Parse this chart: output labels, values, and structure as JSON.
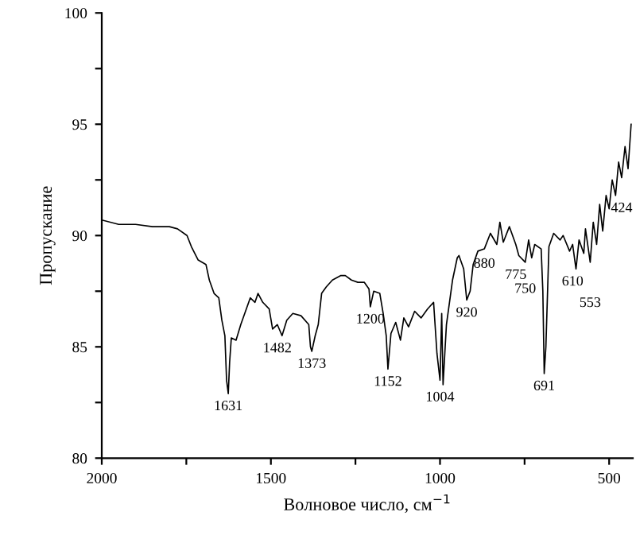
{
  "chart_data": {
    "type": "line",
    "xlabel": "Волновое число, см$^{−1}$",
    "ylabel": "Пропускание",
    "xlim": [
      2000,
      430
    ],
    "ylim": [
      80,
      100
    ],
    "xticks": [
      2000,
      {
        "value": 1750,
        "label": null
      },
      1500,
      {
        "value": 1250,
        "label": null
      },
      1000,
      {
        "value": 750,
        "label": null
      },
      500
    ],
    "yticks": [
      80,
      {
        "value": 82.5,
        "label": null
      },
      85,
      {
        "value": 87.5,
        "label": null
      },
      90,
      {
        "value": 92.5,
        "label": null
      },
      95,
      {
        "value": 97.5,
        "label": null
      },
      100
    ],
    "grid": false,
    "legend": false,
    "series": [
      {
        "color": "#000000",
        "x": [
          2000,
          1950,
          1900,
          1850,
          1800,
          1776,
          1748,
          1735,
          1715,
          1692,
          1682,
          1668,
          1654,
          1645,
          1636,
          1631,
          1626,
          1622,
          1617,
          1603,
          1589,
          1575,
          1561,
          1547,
          1538,
          1524,
          1505,
          1495,
          1481,
          1467,
          1453,
          1435,
          1411,
          1388,
          1383,
          1379,
          1369,
          1360,
          1350,
          1336,
          1318,
          1294,
          1280,
          1262,
          1243,
          1224,
          1210,
          1206,
          1196,
          1178,
          1168,
          1159,
          1154,
          1145,
          1131,
          1117,
          1107,
          1093,
          1075,
          1056,
          1037,
          1019,
          1009,
          1000,
          995,
          991,
          981,
          963,
          949,
          944,
          930,
          921,
          911,
          902,
          888,
          869,
          851,
          832,
          823,
          813,
          795,
          776,
          767,
          748,
          738,
          729,
          720,
          701,
          696,
          692,
          687,
          678,
          664,
          645,
          636,
          617,
          608,
          598,
          589,
          575,
          570,
          556,
          547,
          537,
          528,
          519,
          509,
          500,
          491,
          481,
          472,
          463,
          453,
          444,
          435
        ],
        "values": [
          90.7,
          90.5,
          90.5,
          90.4,
          90.4,
          90.3,
          90.0,
          89.5,
          88.9,
          88.7,
          88.0,
          87.4,
          87.2,
          86.2,
          85.5,
          83.5,
          82.9,
          84.3,
          85.4,
          85.3,
          86.0,
          86.6,
          87.2,
          87.0,
          87.4,
          87.0,
          86.7,
          85.8,
          86.0,
          85.5,
          86.2,
          86.5,
          86.4,
          86.0,
          85.0,
          84.8,
          85.5,
          86.0,
          87.4,
          87.7,
          88.0,
          88.2,
          88.2,
          88.0,
          87.9,
          87.9,
          87.6,
          86.8,
          87.5,
          87.4,
          86.5,
          85.5,
          84.0,
          85.6,
          86.1,
          85.3,
          86.3,
          85.9,
          86.6,
          86.3,
          86.7,
          87.0,
          84.7,
          83.5,
          86.5,
          83.3,
          86.0,
          88.0,
          89.0,
          89.1,
          88.5,
          87.1,
          87.5,
          88.7,
          89.3,
          89.4,
          90.1,
          89.6,
          90.6,
          89.7,
          90.4,
          89.6,
          89.1,
          88.8,
          89.8,
          89.0,
          89.6,
          89.4,
          87.5,
          83.8,
          85.0,
          89.5,
          90.1,
          89.8,
          90.0,
          89.3,
          89.6,
          88.5,
          89.8,
          89.2,
          90.3,
          88.8,
          90.6,
          89.6,
          91.4,
          90.2,
          91.8,
          91.2,
          92.5,
          91.8,
          93.3,
          92.6,
          94.0,
          93.0,
          95.0
        ]
      }
    ],
    "annotations": [
      {
        "text": "1631",
        "x": 1626,
        "y": 82.9
      },
      {
        "text": "1482",
        "x": 1481,
        "y": 86.0
      },
      {
        "text": "1373",
        "x": 1379,
        "y": 84.8
      },
      {
        "text": "1200",
        "x": 1206,
        "y": 86.8
      },
      {
        "text": "1152",
        "x": 1154,
        "y": 84.0
      },
      {
        "text": "1004",
        "x": 1000,
        "y": 83.5
      },
      {
        "text": "920",
        "x": 921,
        "y": 87.1
      },
      {
        "text": "880",
        "x": 869,
        "y": 89.4
      },
      {
        "text": "775",
        "x": 776,
        "y": 89.6
      },
      {
        "text": "750",
        "x": 748,
        "y": 88.8
      },
      {
        "text": "691",
        "x": 692,
        "y": 83.8
      },
      {
        "text": "610",
        "x": 608,
        "y": 89.6
      },
      {
        "text": "553",
        "x": 556,
        "y": 88.8
      },
      {
        "text": "424",
        "x": 463,
        "y": 92.6
      }
    ]
  }
}
